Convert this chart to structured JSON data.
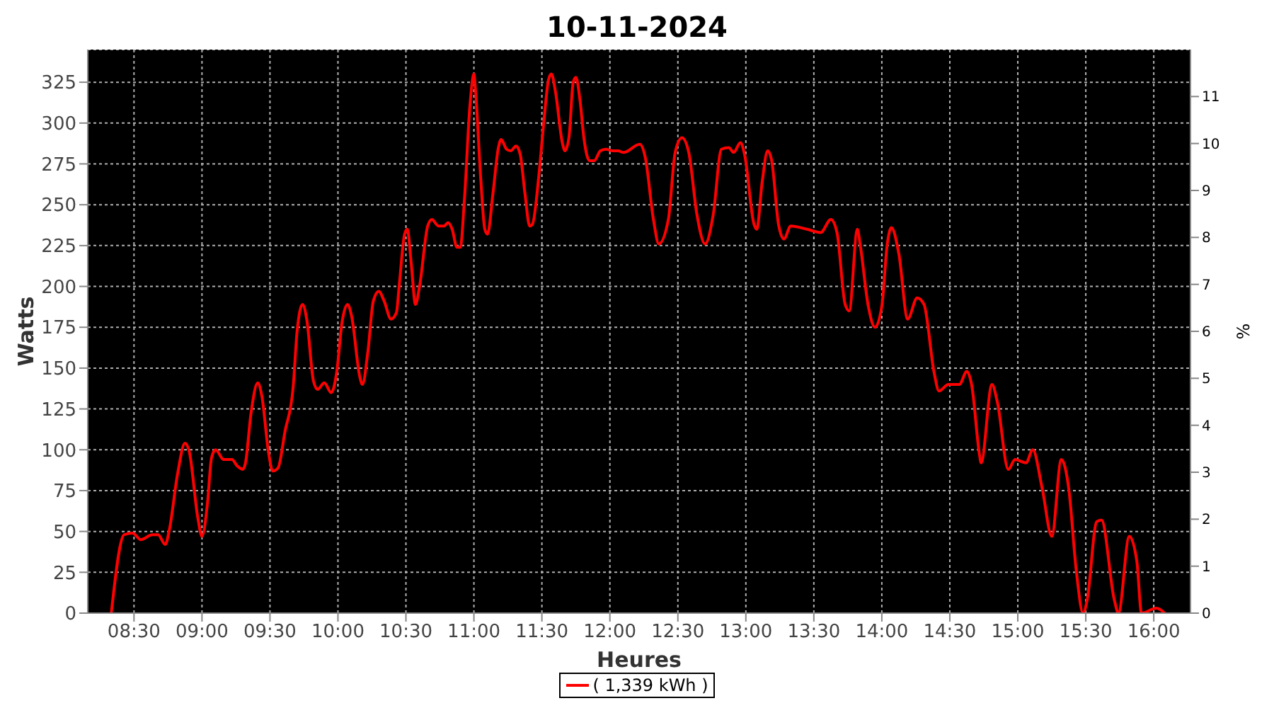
{
  "chart_data": {
    "type": "line",
    "title": "10-11-2024",
    "xlabel": "Heures",
    "ylabel": "Watts",
    "y2label": "%",
    "xlim": [
      8.16,
      16.27
    ],
    "xticks": [
      {
        "value": 8.5,
        "label": "08:30"
      },
      {
        "value": 9,
        "label": "09:00"
      },
      {
        "value": 9.5,
        "label": "09:30"
      },
      {
        "value": 10,
        "label": "10:00"
      },
      {
        "value": 10.5,
        "label": "10:30"
      },
      {
        "value": 11,
        "label": "11:00"
      },
      {
        "value": 11.5,
        "label": "11:30"
      },
      {
        "value": 12,
        "label": "12:00"
      },
      {
        "value": 12.5,
        "label": "12:30"
      },
      {
        "value": 13,
        "label": "13:00"
      },
      {
        "value": 13.5,
        "label": "13:30"
      },
      {
        "value": 14,
        "label": "14:00"
      },
      {
        "value": 14.5,
        "label": "14:30"
      },
      {
        "value": 15,
        "label": "15:00"
      },
      {
        "value": 15.5,
        "label": "15:30"
      },
      {
        "value": 16,
        "label": "16:00"
      }
    ],
    "ylim": [
      0,
      345
    ],
    "yticks": [
      0,
      25,
      50,
      75,
      100,
      125,
      150,
      175,
      200,
      225,
      250,
      275,
      300,
      325
    ],
    "y2lim": [
      0,
      12
    ],
    "y2ticks": [
      0,
      1,
      2,
      3,
      4,
      5,
      6,
      7,
      8,
      9,
      10,
      11
    ],
    "grid": true,
    "legend": "bottom",
    "marker": "none",
    "line_style": "solid",
    "series": [
      {
        "name": "( 1,339 kWh )",
        "color": "#ff0000",
        "x": [
          8.333,
          8.427,
          8.49,
          8.55,
          8.635,
          8.677,
          8.73,
          8.76,
          8.82,
          8.875,
          8.906,
          8.97,
          9.0,
          9.04,
          9.07,
          9.1,
          9.16,
          9.22,
          9.26,
          9.3,
          9.32,
          9.36,
          9.41,
          9.44,
          9.49,
          9.52,
          9.56,
          9.61,
          9.67,
          9.7,
          9.74,
          9.77,
          9.82,
          9.85,
          9.9,
          9.95,
          9.99,
          10.03,
          10.07,
          10.1,
          10.16,
          10.18,
          10.22,
          10.26,
          10.3,
          10.34,
          10.39,
          10.43,
          10.45,
          10.49,
          10.51,
          10.54,
          10.57,
          10.6,
          10.66,
          10.69,
          10.74,
          10.78,
          10.81,
          10.84,
          10.875,
          10.9,
          10.93,
          10.97,
          11.0,
          11.01,
          11.05,
          11.08,
          11.1,
          11.14,
          11.18,
          11.2,
          11.24,
          11.27,
          11.31,
          11.34,
          11.375,
          11.41,
          11.43,
          11.48,
          11.51,
          11.55,
          11.57,
          11.6,
          11.65,
          11.67,
          11.7,
          11.73,
          11.75,
          11.78,
          11.81,
          11.85,
          11.885,
          11.93,
          11.97,
          12.02,
          12.06,
          12.1,
          12.22,
          12.26,
          12.32,
          12.36,
          12.43,
          12.48,
          12.53,
          12.58,
          12.64,
          12.7,
          12.76,
          12.82,
          12.875,
          12.91,
          12.96,
          12.99,
          13.06,
          13.08,
          13.12,
          13.16,
          13.19,
          13.24,
          13.28,
          13.33,
          13.45,
          13.55,
          13.625,
          13.67,
          13.73,
          13.76,
          13.82,
          13.84,
          13.9,
          13.95,
          14.0,
          14.04,
          14.07,
          14.125,
          14.19,
          14.26,
          14.31,
          14.385,
          14.42,
          14.49,
          14.57,
          14.625,
          14.66,
          14.72,
          14.73,
          14.81,
          14.85,
          14.93,
          14.98,
          15.06,
          15.11,
          15.18,
          15.25,
          15.32,
          15.375,
          15.43,
          15.48,
          15.51,
          15.58,
          15.615,
          15.71,
          15.74,
          15.82,
          15.875,
          15.91,
          16.02,
          16.08
        ],
        "values": [
          0,
          48,
          49,
          45,
          48,
          48,
          42,
          51,
          85,
          104,
          99,
          58,
          47,
          67,
          95,
          100,
          94,
          94,
          90,
          88,
          92,
          122,
          141,
          133,
          98,
          87,
          89,
          111,
          138,
          173,
          189,
          180,
          142,
          137,
          141,
          135,
          147,
          178,
          189,
          182,
          145,
          140,
          160,
          191,
          197,
          191,
          180,
          184,
          200,
          232,
          235,
          213,
          189,
          200,
          237,
          241,
          237,
          237,
          239,
          235,
          224,
          224,
          253,
          310,
          330,
          322,
          266,
          235,
          232,
          257,
          285,
          290,
          284,
          283,
          286,
          281,
          257,
          237,
          238,
          270,
          297,
          327,
          330,
          319,
          288,
          283,
          292,
          325,
          328,
          314,
          290,
          277,
          277,
          283,
          284,
          283,
          283,
          282,
          287,
          279,
          241,
          226,
          241,
          282,
          291,
          282,
          244,
          226,
          244,
          284,
          285,
          282,
          288,
          281,
          238,
          235,
          264,
          283,
          277,
          238,
          229,
          237,
          235,
          233,
          241,
          233,
          189,
          185,
          235,
          226,
          188,
          175,
          188,
          226,
          236,
          220,
          180,
          193,
          189,
          147,
          136,
          140,
          140,
          148,
          140,
          96,
          92,
          140,
          129,
          88,
          94,
          92,
          100,
          76,
          47,
          94,
          76,
          26,
          0,
          8,
          56,
          57,
          8,
          0,
          47,
          32,
          0,
          3,
          0
        ]
      }
    ]
  }
}
